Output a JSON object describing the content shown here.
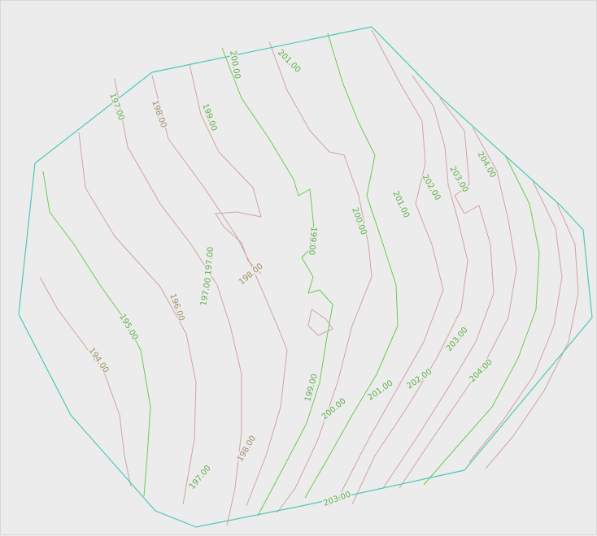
{
  "map": {
    "colors": {
      "background": "#ececec",
      "boundary": "#4cc9b8",
      "contour_minor": "#d2a3a3",
      "contour_major": "#6ccb52",
      "label_minor": "#a08e6a",
      "label_major": "#5fb04a"
    },
    "contour_labels": [
      "194.00",
      "195.00",
      "196.00",
      "197.00",
      "198.00",
      "199.00",
      "200.00",
      "201.00",
      "202.00",
      "203.00",
      "204.00",
      "197.00",
      "198.00",
      "199.00",
      "200.00",
      "201.00",
      "197.00",
      "198.00",
      "197.00",
      "199.00",
      "200.00",
      "201.00",
      "202.00",
      "203.00",
      "204.00",
      "203.00"
    ]
  }
}
